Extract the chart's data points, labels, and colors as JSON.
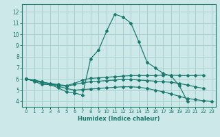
{
  "xlabel": "Humidex (Indice chaleur)",
  "bg_color": "#cce8e8",
  "grid_color": "#aacfcf",
  "line_color": "#1a7a6e",
  "xlim": [
    -0.5,
    23.5
  ],
  "ylim": [
    3.5,
    12.7
  ],
  "xticks": [
    0,
    1,
    2,
    3,
    4,
    5,
    6,
    7,
    8,
    9,
    10,
    11,
    12,
    13,
    14,
    15,
    16,
    17,
    18,
    19,
    20,
    21,
    22,
    23
  ],
  "yticks": [
    4,
    5,
    6,
    7,
    8,
    9,
    10,
    11,
    12
  ],
  "curves": [
    {
      "x": [
        0,
        1,
        2,
        3,
        4,
        5,
        6,
        7,
        8,
        9,
        10,
        11,
        12,
        13,
        14,
        15,
        16,
        17,
        18,
        19,
        20
      ],
      "y": [
        6.0,
        5.8,
        5.5,
        5.5,
        5.2,
        4.85,
        4.75,
        4.55,
        7.8,
        8.6,
        10.3,
        11.8,
        11.55,
        11.0,
        9.3,
        7.5,
        7.0,
        6.5,
        6.25,
        5.4,
        4.0
      ]
    },
    {
      "x": [
        0,
        1,
        2,
        3,
        4,
        5,
        6,
        7,
        8,
        9,
        10,
        11,
        12,
        13,
        14,
        15,
        16,
        17,
        18,
        19,
        20,
        21,
        22
      ],
      "y": [
        6.0,
        5.85,
        5.7,
        5.6,
        5.5,
        5.4,
        5.6,
        5.9,
        6.05,
        6.1,
        6.15,
        6.2,
        6.25,
        6.3,
        6.3,
        6.3,
        6.3,
        6.35,
        6.35,
        6.3,
        6.3,
        6.3,
        6.35
      ]
    },
    {
      "x": [
        0,
        1,
        2,
        3,
        4,
        5,
        6,
        7,
        8,
        9,
        10,
        11,
        12,
        13,
        14,
        15,
        16,
        17,
        18,
        19,
        20,
        21,
        22,
        23
      ],
      "y": [
        6.0,
        5.9,
        5.75,
        5.55,
        5.35,
        5.15,
        5.0,
        5.05,
        5.1,
        5.15,
        5.2,
        5.25,
        5.3,
        5.3,
        5.25,
        5.15,
        5.0,
        4.85,
        4.65,
        4.45,
        4.25,
        4.15,
        4.05,
        4.0
      ]
    },
    {
      "x": [
        0,
        1,
        2,
        3,
        4,
        5,
        6,
        7,
        8,
        9,
        10,
        11,
        12,
        13,
        14,
        15,
        16,
        17,
        18,
        19,
        20,
        21,
        22
      ],
      "y": [
        6.0,
        5.85,
        5.65,
        5.55,
        5.45,
        5.35,
        5.5,
        5.65,
        5.75,
        5.8,
        5.85,
        5.9,
        5.95,
        5.95,
        5.9,
        5.85,
        5.8,
        5.75,
        5.7,
        5.6,
        5.45,
        5.3,
        5.15
      ]
    }
  ]
}
